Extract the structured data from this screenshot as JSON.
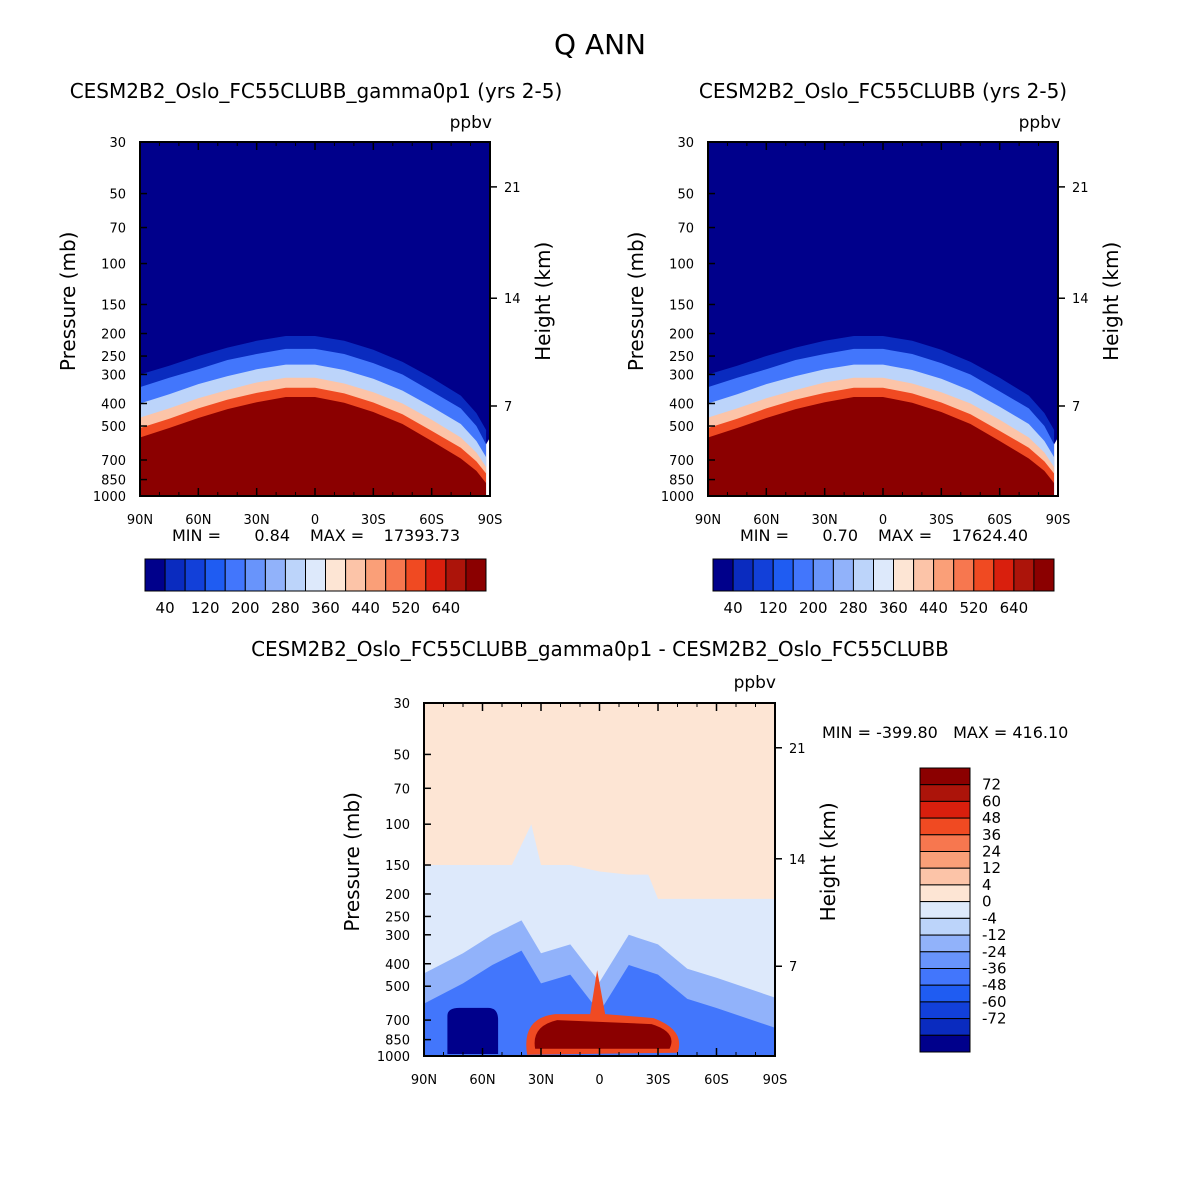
{
  "title": "Q ANN",
  "colors": {
    "seq": [
      "#00008b",
      "#0a2bbf",
      "#1240d9",
      "#1f5cf2",
      "#4276fc",
      "#6894fb",
      "#91b2fa",
      "#bcd4fa",
      "#dde9fb",
      "#fde5d4",
      "#fcc4a8",
      "#fa9f78",
      "#f7774f",
      "#f04a22",
      "#d91f0d",
      "#ac140a",
      "#8b0000"
    ],
    "diff": [
      "#00008b",
      "#0a2bbf",
      "#1240d9",
      "#1f5cf2",
      "#4276fc",
      "#6894fb",
      "#91b2fa",
      "#bcd4fa",
      "#dde9fb",
      "#fde5d4",
      "#fcc4a8",
      "#fa9f78",
      "#f7774f",
      "#f04a22",
      "#d91f0d",
      "#ac140a",
      "#8b0000"
    ]
  },
  "axes": {
    "pressure_ticks": [
      "30",
      "50",
      "70",
      "100",
      "150",
      "200",
      "250",
      "300",
      "400",
      "500",
      "700",
      "850",
      "1000"
    ],
    "height_ticks": [
      "21",
      "14",
      "7"
    ],
    "lat_ticks": [
      "90N",
      "60N",
      "30N",
      "0",
      "30S",
      "60S",
      "90S"
    ],
    "pressure_label": "Pressure (mb)",
    "height_label": "Height (km)",
    "units": "ppbv"
  },
  "panels": {
    "left": {
      "title": "CESM2B2_Oslo_FC55CLUBB_gamma0p1 (yrs 2-5)",
      "min_label": "MIN =",
      "min_value": "0.84",
      "max_label": "MAX =",
      "max_value": "17393.73"
    },
    "right": {
      "title": "CESM2B2_Oslo_FC55CLUBB (yrs 2-5)",
      "min_label": "MIN =",
      "min_value": "0.70",
      "max_label": "MAX =",
      "max_value": "17624.40"
    },
    "diff": {
      "title": "CESM2B2_Oslo_FC55CLUBB_gamma0p1 - CESM2B2_Oslo_FC55CLUBB",
      "minmax": "MIN = -399.80   MAX = 416.10"
    }
  },
  "colorbar_main_labels": [
    "40",
    "120",
    "200",
    "280",
    "360",
    "440",
    "520",
    "640"
  ],
  "colorbar_diff_labels": [
    "72",
    "60",
    "48",
    "36",
    "24",
    "12",
    "4",
    "0",
    "-4",
    "-12",
    "-24",
    "-36",
    "-48",
    "-60",
    "-72"
  ],
  "chart_data": [
    {
      "type": "heatmap",
      "title": "CESM2B2_Oslo_FC55CLUBB_gamma0p1 (yrs 2-5)",
      "xlabel": "",
      "ylabel": "Pressure (mb)",
      "y2label": "Height (km)",
      "units": "ppbv",
      "x_ticks": [
        "90N",
        "60N",
        "30N",
        "0",
        "30S",
        "60S",
        "90S"
      ],
      "y_ticks": [
        30,
        50,
        70,
        100,
        150,
        200,
        250,
        300,
        400,
        500,
        700,
        850,
        1000
      ],
      "y_scale": "log",
      "y_reversed": true,
      "x_range": [
        90,
        -90
      ],
      "y_range": [
        1000,
        30
      ],
      "levels": [
        40,
        80,
        120,
        160,
        200,
        240,
        280,
        320,
        360,
        400,
        440,
        480,
        520,
        560,
        600,
        640
      ],
      "min": 0.84,
      "max": 17393.73,
      "contours_lat": [
        90,
        75,
        60,
        45,
        30,
        15,
        0,
        -15,
        -30,
        -45,
        -60,
        -75,
        -83,
        -88
      ],
      "contours": [
        {
          "level": 40,
          "p": [
            300,
            275,
            250,
            230,
            215,
            205,
            205,
            215,
            235,
            265,
            310,
            370,
            440,
            520
          ]
        },
        {
          "level": 80,
          "p": [
            340,
            310,
            285,
            260,
            245,
            233,
            233,
            245,
            268,
            300,
            355,
            420,
            500,
            600
          ]
        },
        {
          "level": 160,
          "p": [
            400,
            365,
            330,
            305,
            285,
            272,
            272,
            287,
            313,
            352,
            413,
            490,
            580,
            680
          ]
        },
        {
          "level": 280,
          "p": [
            460,
            420,
            380,
            350,
            325,
            310,
            310,
            328,
            358,
            400,
            470,
            560,
            650,
            750
          ]
        },
        {
          "level": 360,
          "p": [
            510,
            465,
            420,
            385,
            360,
            342,
            342,
            362,
            396,
            445,
            525,
            620,
            710,
            800
          ]
        },
        {
          "level": 640,
          "p": [
            560,
            510,
            462,
            423,
            395,
            375,
            375,
            397,
            435,
            490,
            580,
            690,
            780,
            880
          ]
        }
      ]
    },
    {
      "type": "heatmap",
      "title": "CESM2B2_Oslo_FC55CLUBB (yrs 2-5)",
      "xlabel": "",
      "ylabel": "Pressure (mb)",
      "y2label": "Height (km)",
      "units": "ppbv",
      "x_ticks": [
        "90N",
        "60N",
        "30N",
        "0",
        "30S",
        "60S",
        "90S"
      ],
      "y_ticks": [
        30,
        50,
        70,
        100,
        150,
        200,
        250,
        300,
        400,
        500,
        700,
        850,
        1000
      ],
      "y_scale": "log",
      "y_reversed": true,
      "x_range": [
        90,
        -90
      ],
      "y_range": [
        1000,
        30
      ],
      "levels": [
        40,
        80,
        120,
        160,
        200,
        240,
        280,
        320,
        360,
        400,
        440,
        480,
        520,
        560,
        600,
        640
      ],
      "min": 0.7,
      "max": 17624.4,
      "contours_lat": [
        90,
        75,
        60,
        45,
        30,
        15,
        0,
        -15,
        -30,
        -45,
        -60,
        -75,
        -83,
        -88
      ],
      "contours": [
        {
          "level": 40,
          "p": [
            300,
            275,
            250,
            230,
            215,
            205,
            205,
            215,
            235,
            265,
            310,
            370,
            440,
            520
          ]
        },
        {
          "level": 80,
          "p": [
            340,
            310,
            285,
            260,
            245,
            233,
            233,
            245,
            268,
            300,
            355,
            420,
            500,
            600
          ]
        },
        {
          "level": 160,
          "p": [
            400,
            365,
            330,
            305,
            285,
            272,
            272,
            287,
            313,
            352,
            413,
            490,
            580,
            680
          ]
        },
        {
          "level": 280,
          "p": [
            460,
            420,
            380,
            350,
            325,
            310,
            310,
            328,
            358,
            400,
            470,
            560,
            650,
            750
          ]
        },
        {
          "level": 360,
          "p": [
            510,
            465,
            420,
            385,
            360,
            342,
            342,
            362,
            396,
            445,
            525,
            620,
            710,
            800
          ]
        },
        {
          "level": 640,
          "p": [
            560,
            510,
            462,
            423,
            395,
            375,
            375,
            397,
            435,
            490,
            580,
            690,
            780,
            880
          ]
        }
      ]
    },
    {
      "type": "heatmap",
      "title": "CESM2B2_Oslo_FC55CLUBB_gamma0p1 - CESM2B2_Oslo_FC55CLUBB",
      "xlabel": "",
      "ylabel": "Pressure (mb)",
      "y2label": "Height (km)",
      "units": "ppbv",
      "x_ticks": [
        "90N",
        "60N",
        "30N",
        "0",
        "30S",
        "60S",
        "90S"
      ],
      "y_ticks": [
        30,
        50,
        70,
        100,
        150,
        200,
        250,
        300,
        400,
        500,
        700,
        850,
        1000
      ],
      "y_scale": "log",
      "y_reversed": true,
      "x_range": [
        90,
        -90
      ],
      "y_range": [
        1000,
        30
      ],
      "levels": [
        -72,
        -60,
        -48,
        -36,
        -24,
        -12,
        -4,
        0,
        4,
        12,
        24,
        36,
        48,
        60,
        72
      ],
      "min": -399.8,
      "max": 416.1,
      "regions": [
        {
          "level": "0 to 4",
          "p_top": 30,
          "p_bottom": 1000,
          "lat_from": 90,
          "lat_to": -90
        },
        {
          "level": "-4 to 0",
          "p_top_by_lat": {
            "lat": [
              90,
              45,
              35,
              30,
              15,
              0,
              -15,
              -25,
              -30,
              -40,
              -60,
              -90
            ],
            "p": [
              150,
              150,
              100,
              150,
              150,
              160,
              165,
              165,
              210,
              210,
              210,
              210
            ]
          }
        },
        {
          "level": "below -12",
          "p_top_by_lat": {
            "lat": [
              90,
              70,
              55,
              40,
              30,
              15,
              0,
              -15,
              -30,
              -45,
              -60,
              -90
            ],
            "p": [
              440,
              360,
              300,
              260,
              360,
              330,
              480,
              300,
              330,
              420,
              460,
              560
            ]
          }
        },
        {
          "level": "below -72",
          "lat_from": 78,
          "lat_to": 52,
          "p_top": 620,
          "p_bottom": 1000
        },
        {
          "level": "above 72",
          "lat_from": 33,
          "lat_to": -38,
          "p_top": 700,
          "p_bottom": 930
        }
      ]
    }
  ]
}
